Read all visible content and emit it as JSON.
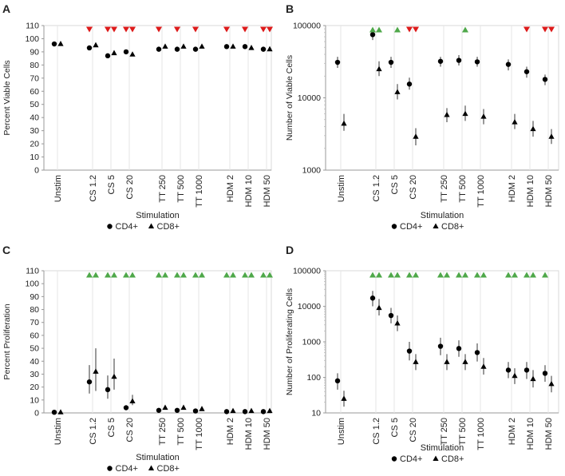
{
  "chart_data": [
    {
      "panel": "A",
      "type": "scatter",
      "scale": "linear",
      "ylabel": "Percent Viable Cells",
      "xlabel": "Stimulation",
      "ylim": [
        0,
        110
      ],
      "yticks": [
        0,
        10,
        20,
        30,
        40,
        50,
        60,
        70,
        80,
        90,
        100,
        110
      ],
      "ytick_labels": [
        "0",
        "10",
        "20",
        "30",
        "40",
        "50",
        "60",
        "70",
        "80",
        "90",
        "100",
        "110"
      ],
      "categories": [
        "Unstim",
        "CS 1.2",
        "CS 5",
        "CS 20",
        "TT 250",
        "TT 500",
        "TT 1000",
        "HDM 2",
        "HDM 10",
        "HDM 50"
      ],
      "series": [
        {
          "name": "CD4+",
          "marker": "circle",
          "values": [
            96,
            93,
            87,
            90,
            92,
            92,
            92,
            94,
            94,
            92
          ],
          "err": [
            [
              0,
              0
            ],
            [
              0,
              0
            ],
            [
              0,
              0
            ],
            [
              0,
              0
            ],
            [
              0,
              0
            ],
            [
              0,
              0
            ],
            [
              0,
              0
            ],
            [
              0,
              0
            ],
            [
              0,
              0
            ],
            [
              0,
              0
            ]
          ]
        },
        {
          "name": "CD8+",
          "marker": "triangle",
          "values": [
            96,
            95,
            89,
            88,
            94,
            94,
            94,
            94,
            93,
            92
          ],
          "err": [
            [
              0,
              0
            ],
            [
              0,
              0
            ],
            [
              0,
              0
            ],
            [
              0,
              0
            ],
            [
              0,
              0
            ],
            [
              0,
              0
            ],
            [
              0,
              0
            ],
            [
              0,
              0
            ],
            [
              0,
              0
            ],
            [
              0,
              0
            ]
          ]
        }
      ],
      "annotations": [
        {
          "cat": 1,
          "series": "CD4+",
          "dir": "down",
          "color": "#dd1a1a"
        },
        {
          "cat": 2,
          "series": "CD4+",
          "dir": "down",
          "color": "#dd1a1a"
        },
        {
          "cat": 2,
          "series": "CD8+",
          "dir": "down",
          "color": "#dd1a1a"
        },
        {
          "cat": 3,
          "series": "CD4+",
          "dir": "down",
          "color": "#dd1a1a"
        },
        {
          "cat": 3,
          "series": "CD8+",
          "dir": "down",
          "color": "#dd1a1a"
        },
        {
          "cat": 4,
          "series": "CD4+",
          "dir": "down",
          "color": "#dd1a1a"
        },
        {
          "cat": 5,
          "series": "CD4+",
          "dir": "down",
          "color": "#dd1a1a"
        },
        {
          "cat": 6,
          "series": "CD4+",
          "dir": "down",
          "color": "#dd1a1a"
        },
        {
          "cat": 7,
          "series": "CD4+",
          "dir": "down",
          "color": "#dd1a1a"
        },
        {
          "cat": 8,
          "series": "CD4+",
          "dir": "down",
          "color": "#dd1a1a"
        },
        {
          "cat": 9,
          "series": "CD4+",
          "dir": "down",
          "color": "#dd1a1a"
        },
        {
          "cat": 9,
          "series": "CD8+",
          "dir": "down",
          "color": "#dd1a1a"
        }
      ],
      "legend": "bottom"
    },
    {
      "panel": "B",
      "type": "scatter",
      "scale": "log",
      "ylabel": "Number of Viable Cells",
      "xlabel": "Stimulation",
      "ylim": [
        1000,
        100000
      ],
      "yticks": [
        1000,
        10000,
        100000
      ],
      "ytick_labels": [
        "1000",
        "10000",
        "100000"
      ],
      "categories": [
        "Unstim",
        "CS 1.2",
        "CS 5",
        "CS 20",
        "TT 250",
        "TT 500",
        "TT 1000",
        "HDM 2",
        "HDM 10",
        "HDM 50"
      ],
      "series": [
        {
          "name": "CD4+",
          "marker": "circle",
          "values": [
            31000,
            75000,
            31000,
            15500,
            32000,
            33000,
            31500,
            29000,
            23000,
            18000
          ],
          "err": [
            [
              26000,
              37000
            ],
            [
              63000,
              88000
            ],
            [
              26000,
              37000
            ],
            [
              13000,
              19000
            ],
            [
              27000,
              37000
            ],
            [
              28000,
              39000
            ],
            [
              27000,
              37000
            ],
            [
              24000,
              34000
            ],
            [
              19000,
              27000
            ],
            [
              15000,
              21000
            ]
          ]
        },
        {
          "name": "CD8+",
          "marker": "triangle",
          "values": [
            4400,
            25000,
            12000,
            2900,
            5800,
            6000,
            5500,
            4600,
            3700,
            2900
          ],
          "err": [
            [
              3500,
              6000
            ],
            [
              20000,
              32000
            ],
            [
              9500,
              15500
            ],
            [
              2200,
              3800
            ],
            [
              4600,
              7200
            ],
            [
              4800,
              7800
            ],
            [
              4300,
              7000
            ],
            [
              3700,
              6000
            ],
            [
              2900,
              4800
            ],
            [
              2300,
              3700
            ]
          ]
        }
      ],
      "annotations": [
        {
          "cat": 1,
          "series": "CD4+",
          "dir": "up",
          "color": "#4fa84a"
        },
        {
          "cat": 1,
          "series": "CD8+",
          "dir": "up",
          "color": "#4fa84a"
        },
        {
          "cat": 2,
          "series": "CD8+",
          "dir": "up",
          "color": "#4fa84a"
        },
        {
          "cat": 3,
          "series": "CD4+",
          "dir": "down",
          "color": "#dd1a1a"
        },
        {
          "cat": 3,
          "series": "CD8+",
          "dir": "down",
          "color": "#dd1a1a"
        },
        {
          "cat": 5,
          "series": "CD8+",
          "dir": "up",
          "color": "#4fa84a"
        },
        {
          "cat": 8,
          "series": "CD4+",
          "dir": "down",
          "color": "#dd1a1a"
        },
        {
          "cat": 9,
          "series": "CD4+",
          "dir": "down",
          "color": "#dd1a1a"
        },
        {
          "cat": 9,
          "series": "CD8+",
          "dir": "down",
          "color": "#dd1a1a"
        }
      ],
      "legend": "bottom"
    },
    {
      "panel": "C",
      "type": "scatter",
      "scale": "linear",
      "ylabel": "Percent Proliferation",
      "xlabel": "Stimulation",
      "ylim": [
        0,
        110
      ],
      "yticks": [
        0,
        10,
        20,
        30,
        40,
        50,
        60,
        70,
        80,
        90,
        100,
        110
      ],
      "ytick_labels": [
        "0",
        "10",
        "20",
        "30",
        "40",
        "50",
        "60",
        "70",
        "80",
        "90",
        "100",
        "110"
      ],
      "categories": [
        "Unstim",
        "CS 1.2",
        "CS 5",
        "CS 20",
        "TT 250",
        "TT 500",
        "TT 1000",
        "HDM 2",
        "HDM 10",
        "HDM 50"
      ],
      "series": [
        {
          "name": "CD4+",
          "marker": "circle",
          "values": [
            0.5,
            24,
            18,
            4,
            2,
            2,
            1.5,
            1,
            1,
            1
          ],
          "err": [
            [
              0.5,
              0.5
            ],
            [
              15,
              37
            ],
            [
              11,
              29
            ],
            [
              3,
              6
            ],
            [
              2,
              2
            ],
            [
              2,
              2
            ],
            [
              1.5,
              1.5
            ],
            [
              1,
              1
            ],
            [
              1,
              1
            ],
            [
              1,
              1
            ]
          ]
        },
        {
          "name": "CD8+",
          "marker": "triangle",
          "values": [
            0.5,
            32,
            28,
            9,
            4,
            4,
            3,
            1.5,
            1.5,
            1.5
          ],
          "err": [
            [
              0.5,
              0.5
            ],
            [
              17,
              50
            ],
            [
              18,
              42
            ],
            [
              6,
              14
            ],
            [
              3,
              5
            ],
            [
              3,
              5
            ],
            [
              2,
              4
            ],
            [
              1,
              2
            ],
            [
              1,
              2
            ],
            [
              1,
              2
            ]
          ]
        }
      ],
      "annotations": [
        {
          "cat": 1,
          "series": "CD4+",
          "dir": "up",
          "color": "#4fa84a"
        },
        {
          "cat": 1,
          "series": "CD8+",
          "dir": "up",
          "color": "#4fa84a"
        },
        {
          "cat": 2,
          "series": "CD4+",
          "dir": "up",
          "color": "#4fa84a"
        },
        {
          "cat": 2,
          "series": "CD8+",
          "dir": "up",
          "color": "#4fa84a"
        },
        {
          "cat": 3,
          "series": "CD4+",
          "dir": "up",
          "color": "#4fa84a"
        },
        {
          "cat": 3,
          "series": "CD8+",
          "dir": "up",
          "color": "#4fa84a"
        },
        {
          "cat": 4,
          "series": "CD4+",
          "dir": "up",
          "color": "#4fa84a"
        },
        {
          "cat": 4,
          "series": "CD8+",
          "dir": "up",
          "color": "#4fa84a"
        },
        {
          "cat": 5,
          "series": "CD4+",
          "dir": "up",
          "color": "#4fa84a"
        },
        {
          "cat": 5,
          "series": "CD8+",
          "dir": "up",
          "color": "#4fa84a"
        },
        {
          "cat": 6,
          "series": "CD4+",
          "dir": "up",
          "color": "#4fa84a"
        },
        {
          "cat": 6,
          "series": "CD8+",
          "dir": "up",
          "color": "#4fa84a"
        },
        {
          "cat": 7,
          "series": "CD4+",
          "dir": "up",
          "color": "#4fa84a"
        },
        {
          "cat": 7,
          "series": "CD8+",
          "dir": "up",
          "color": "#4fa84a"
        },
        {
          "cat": 8,
          "series": "CD4+",
          "dir": "up",
          "color": "#4fa84a"
        },
        {
          "cat": 8,
          "series": "CD8+",
          "dir": "up",
          "color": "#4fa84a"
        },
        {
          "cat": 9,
          "series": "CD4+",
          "dir": "up",
          "color": "#4fa84a"
        },
        {
          "cat": 9,
          "series": "CD8+",
          "dir": "up",
          "color": "#4fa84a"
        }
      ],
      "legend": "bottom"
    },
    {
      "panel": "D",
      "type": "scatter",
      "scale": "log",
      "ylabel": "Number of Proliferating Cells",
      "xlabel": "Stimulation",
      "ylim": [
        10,
        100000
      ],
      "yticks": [
        10,
        100,
        1000,
        10000,
        100000
      ],
      "ytick_labels": [
        "10",
        "100",
        "1000",
        "10000",
        "100000"
      ],
      "categories": [
        "Unstim",
        "CS 1.2",
        "CS 5",
        "CS 20",
        "TT 250",
        "TT 500",
        "TT 1000",
        "HDM 2",
        "HDM 10",
        "HDM 50"
      ],
      "series": [
        {
          "name": "CD4+",
          "marker": "circle",
          "values": [
            80,
            17000,
            5500,
            550,
            750,
            650,
            500,
            160,
            160,
            130
          ],
          "err": [
            [
              45,
              130
            ],
            [
              10000,
              27000
            ],
            [
              3300,
              9000
            ],
            [
              300,
              1000
            ],
            [
              420,
              1300
            ],
            [
              380,
              1100
            ],
            [
              280,
              900
            ],
            [
              95,
              270
            ],
            [
              90,
              270
            ],
            [
              75,
              220
            ]
          ]
        },
        {
          "name": "CD8+",
          "marker": "triangle",
          "values": [
            25,
            9000,
            3300,
            270,
            270,
            270,
            200,
            110,
            90,
            65
          ],
          "err": [
            [
              15,
              42
            ],
            [
              5500,
              16000
            ],
            [
              2000,
              5500
            ],
            [
              160,
              450
            ],
            [
              160,
              450
            ],
            [
              160,
              450
            ],
            [
              120,
              350
            ],
            [
              65,
              180
            ],
            [
              52,
              160
            ],
            [
              38,
              110
            ]
          ]
        }
      ],
      "annotations": [
        {
          "cat": 1,
          "series": "CD4+",
          "dir": "up",
          "color": "#4fa84a"
        },
        {
          "cat": 1,
          "series": "CD8+",
          "dir": "up",
          "color": "#4fa84a"
        },
        {
          "cat": 2,
          "series": "CD4+",
          "dir": "up",
          "color": "#4fa84a"
        },
        {
          "cat": 2,
          "series": "CD8+",
          "dir": "up",
          "color": "#4fa84a"
        },
        {
          "cat": 3,
          "series": "CD4+",
          "dir": "up",
          "color": "#4fa84a"
        },
        {
          "cat": 3,
          "series": "CD8+",
          "dir": "up",
          "color": "#4fa84a"
        },
        {
          "cat": 4,
          "series": "CD4+",
          "dir": "up",
          "color": "#4fa84a"
        },
        {
          "cat": 4,
          "series": "CD8+",
          "dir": "up",
          "color": "#4fa84a"
        },
        {
          "cat": 5,
          "series": "CD4+",
          "dir": "up",
          "color": "#4fa84a"
        },
        {
          "cat": 5,
          "series": "CD8+",
          "dir": "up",
          "color": "#4fa84a"
        },
        {
          "cat": 6,
          "series": "CD4+",
          "dir": "up",
          "color": "#4fa84a"
        },
        {
          "cat": 6,
          "series": "CD8+",
          "dir": "up",
          "color": "#4fa84a"
        },
        {
          "cat": 7,
          "series": "CD4+",
          "dir": "up",
          "color": "#4fa84a"
        },
        {
          "cat": 7,
          "series": "CD8+",
          "dir": "up",
          "color": "#4fa84a"
        },
        {
          "cat": 8,
          "series": "CD4+",
          "dir": "up",
          "color": "#4fa84a"
        },
        {
          "cat": 8,
          "series": "CD8+",
          "dir": "up",
          "color": "#4fa84a"
        },
        {
          "cat": 9,
          "series": "CD4+",
          "dir": "up",
          "color": "#4fa84a"
        }
      ],
      "legend": "bottom"
    }
  ]
}
